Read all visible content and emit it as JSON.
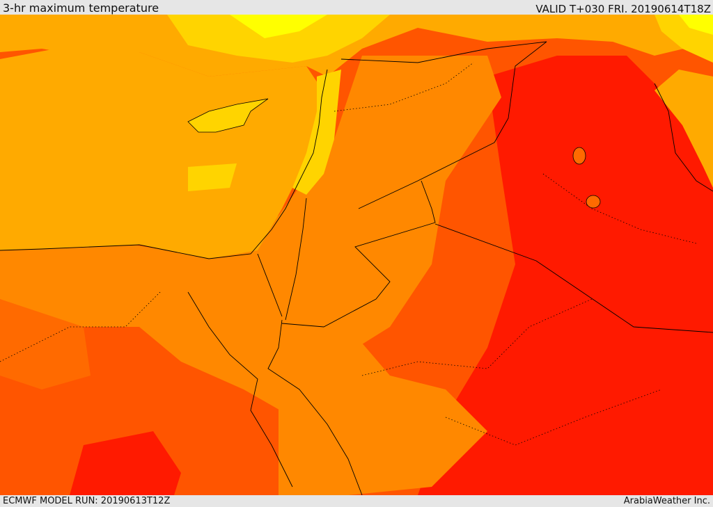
{
  "header": {
    "title": "3-hr maximum temperature",
    "valid": "VALID T+030 FRI. 20190614T18Z"
  },
  "footer": {
    "model_run": "ECMWF MODEL RUN: 20190613T12Z",
    "credit": "ArabiaWeather Inc."
  },
  "palette": {
    "cool": "#ffff00",
    "mild": "#ffd400",
    "warm": "#ffaa00",
    "hot": "#ff8800",
    "very_hot": "#ff5500",
    "extreme": "#ff1a00"
  }
}
